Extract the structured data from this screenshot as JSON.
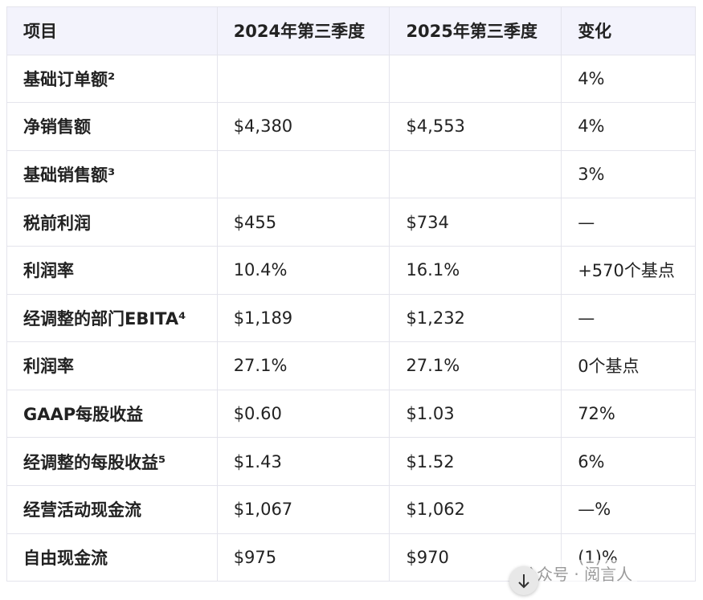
{
  "table": {
    "header": [
      "项目",
      "2024年第三季度",
      "2025年第三季度",
      "变化"
    ],
    "rows": [
      [
        "基础订单额²",
        null,
        null,
        "4%"
      ],
      [
        "净销售额",
        "$4,380",
        "$4,553",
        "4%"
      ],
      [
        "基础销售额³",
        null,
        null,
        "3%"
      ],
      [
        "税前利润",
        "$455",
        "$734",
        "—"
      ],
      [
        "利润率",
        "10.4%",
        "16.1%",
        "+570个基点"
      ],
      [
        "经调整的部门EBITA⁴",
        "$1,189",
        "$1,232",
        "—"
      ],
      [
        "利润率",
        "27.1%",
        "27.1%",
        "0个基点"
      ],
      [
        "GAAP每股收益",
        "$0.60",
        "$1.03",
        "72%"
      ],
      [
        "经调整的每股收益⁵",
        "$1.43",
        "$1.52",
        "6%"
      ],
      [
        "经营活动现金流",
        "$1,067",
        "$1,062",
        "—%"
      ],
      [
        "自由现金流",
        "$975",
        "$970",
        "(1)%"
      ]
    ]
  },
  "watermark": "公众号 · 阅言人"
}
